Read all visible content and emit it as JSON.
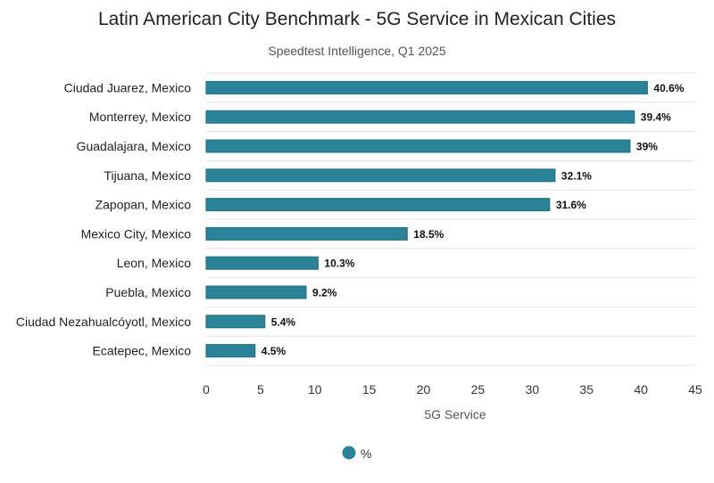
{
  "chart_data": {
    "type": "bar",
    "orientation": "horizontal",
    "title": "Latin American City Benchmark - 5G Service in Mexican Cities",
    "subtitle": "Speedtest Intelligence, Q1 2025",
    "xlabel": "5G Service",
    "ylabel": "",
    "xlim": [
      0,
      45
    ],
    "xticks": [
      0,
      5,
      10,
      15,
      20,
      25,
      30,
      35,
      40,
      45
    ],
    "grid": true,
    "legend_position": "bottom-center",
    "categories": [
      "Ciudad Juarez, Mexico",
      "Monterrey, Mexico",
      "Guadalajara, Mexico",
      "Tijuana, Mexico",
      "Zapopan, Mexico",
      "Mexico City, Mexico",
      "Leon, Mexico",
      "Puebla, Mexico",
      "Ciudad Nezahualcóyotl, Mexico",
      "Ecatepec, Mexico"
    ],
    "series": [
      {
        "name": "%",
        "color": "#2a8396",
        "values": [
          40.6,
          39.4,
          39,
          32.1,
          31.6,
          18.5,
          10.3,
          9.2,
          5.4,
          4.5
        ],
        "data_labels": [
          "40.6%",
          "39.4%",
          "39%",
          "32.1%",
          "31.6%",
          "18.5%",
          "10.3%",
          "9.2%",
          "5.4%",
          "4.5%"
        ]
      }
    ]
  }
}
